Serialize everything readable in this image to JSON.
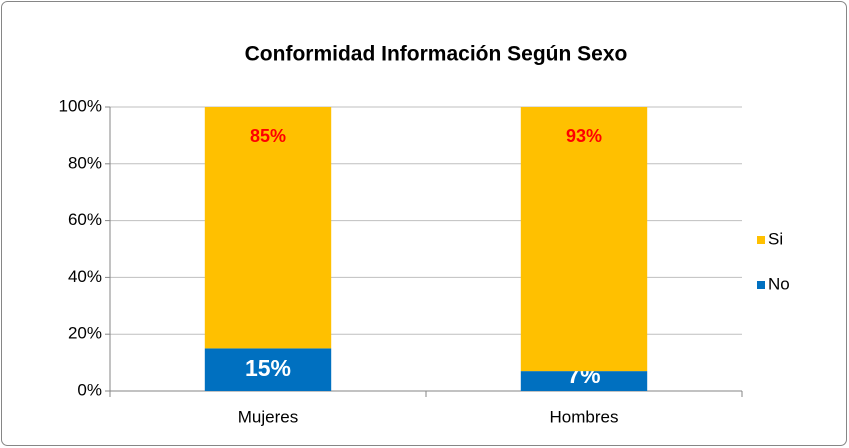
{
  "chart_data": {
    "type": "stacked_bar",
    "title": "Conformidad Información Según Sexo",
    "categories": [
      "Mujeres",
      "Hombres"
    ],
    "series": [
      {
        "name": "No",
        "color": "#0070c0",
        "label_color": "#ffffff",
        "values": [
          15,
          7
        ],
        "value_labels": [
          "15%",
          "7%"
        ]
      },
      {
        "name": "Si",
        "color": "#ffc000",
        "label_color": "#ff0000",
        "values": [
          85,
          93
        ],
        "value_labels": [
          "85%",
          "93%"
        ]
      }
    ],
    "ylim": [
      0,
      100
    ],
    "yticks": [
      {
        "value": 0,
        "label": "0%"
      },
      {
        "value": 20,
        "label": "20%"
      },
      {
        "value": 40,
        "label": "40%"
      },
      {
        "value": 60,
        "label": "60%"
      },
      {
        "value": 80,
        "label": "80%"
      },
      {
        "value": 100,
        "label": "100%"
      }
    ],
    "grid": true,
    "legend": "right"
  }
}
